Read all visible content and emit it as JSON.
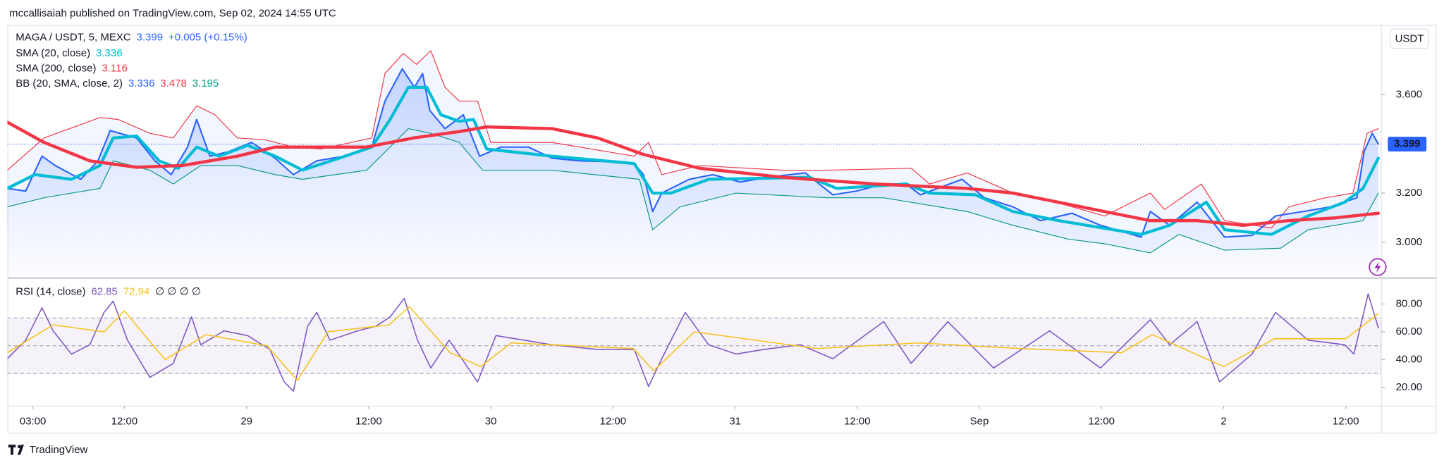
{
  "header": "mccallisaiah published on TradingView.com, Sep 02, 2024 14:55 UTC",
  "brand": "TradingView",
  "chart_data": [
    {
      "type": "line",
      "title": "MAGA / USDT, 5, MEXC",
      "title_values": [
        {
          "text": "3.399",
          "color": "#2962ff"
        },
        {
          "text": "+0.005 (+0.15%)",
          "color": "#2962ff"
        }
      ],
      "legend": [
        {
          "label": "SMA (20, close)",
          "values": [
            {
              "text": "3.336",
              "color": "#00bcd4"
            }
          ]
        },
        {
          "label": "SMA (200, close)",
          "values": [
            {
              "text": "3.116",
              "color": "#f23645"
            }
          ]
        },
        {
          "label": "BB (20, SMA, close, 2)",
          "values": [
            {
              "text": "3.336",
              "color": "#2962ff"
            },
            {
              "text": "3.478",
              "color": "#f23645"
            },
            {
              "text": "3.195",
              "color": "#089981"
            }
          ]
        }
      ],
      "axis_unit": "USDT",
      "last_price": 3.399,
      "xlim": [
        0.5,
        135.5
      ],
      "xticks": [
        {
          "value": 3,
          "label": "03:00"
        },
        {
          "value": 12,
          "label": "12:00"
        },
        {
          "value": 24,
          "label": "29"
        },
        {
          "value": 36,
          "label": "12:00"
        },
        {
          "value": 48,
          "label": "30"
        },
        {
          "value": 60,
          "label": "12:00"
        },
        {
          "value": 72,
          "label": "31"
        },
        {
          "value": 84,
          "label": "12:00"
        },
        {
          "value": 96,
          "label": "Sep"
        },
        {
          "value": 108,
          "label": "12:00"
        },
        {
          "value": 120,
          "label": "2"
        },
        {
          "value": 132,
          "label": "12:00"
        }
      ],
      "ylim": [
        2.862,
        3.88
      ],
      "yticks": [
        {
          "value": 3,
          "label": "3.000"
        },
        {
          "value": 3.2,
          "label": "3.200"
        },
        {
          "value": 3.6,
          "label": "3.600"
        }
      ],
      "series": [
        {
          "color": "#f23645",
          "width": 0.9,
          "x": [
            0.5,
            4.1,
            9.6,
            11.4,
            14.5,
            16.8,
            19.1,
            20.9,
            23.1,
            25.8,
            28.6,
            31.3,
            36.3,
            37.6,
            39.4,
            40.7,
            42.1,
            43.5,
            44.9,
            46.7,
            48.0,
            54.0,
            62.1,
            63.5,
            64.8,
            68.5,
            76.7,
            81.1,
            89.3,
            91.1,
            94.8,
            99.3,
            102.9,
            108.3,
            112.8,
            114.2,
            117.8,
            120.1,
            124.7,
            126.4,
            130.0,
            132.7,
            134.1,
            135.2
          ],
          "values": [
            3.293,
            3.424,
            3.507,
            3.499,
            3.443,
            3.424,
            3.555,
            3.518,
            3.424,
            3.417,
            3.387,
            3.379,
            3.424,
            3.686,
            3.768,
            3.723,
            3.779,
            3.63,
            3.574,
            3.574,
            3.406,
            3.406,
            3.35,
            3.406,
            3.275,
            3.312,
            3.293,
            3.293,
            3.301,
            3.237,
            3.282,
            3.2,
            3.17,
            3.107,
            3.2,
            3.133,
            3.237,
            3.088,
            3.058,
            3.144,
            3.181,
            3.2,
            3.443,
            3.462
          ]
        },
        {
          "color": "#089981",
          "width": 0.9,
          "x": [
            0.5,
            4.1,
            6.8,
            9.6,
            10.9,
            14.5,
            16.8,
            19.5,
            23.1,
            26.8,
            29.5,
            35.8,
            38.1,
            39.9,
            42.1,
            44.9,
            47.2,
            54.0,
            62.6,
            63.9,
            66.6,
            72.1,
            81.1,
            86.6,
            94.8,
            99.3,
            104.7,
            108.3,
            112.8,
            115.6,
            120.1,
            125.6,
            128.3,
            133.7,
            135.2
          ],
          "values": [
            3.144,
            3.181,
            3.2,
            3.219,
            3.331,
            3.293,
            3.237,
            3.312,
            3.312,
            3.275,
            3.256,
            3.293,
            3.387,
            3.462,
            3.443,
            3.406,
            3.293,
            3.293,
            3.256,
            3.051,
            3.144,
            3.2,
            3.181,
            3.181,
            3.125,
            3.069,
            3.013,
            2.994,
            2.957,
            3.032,
            2.968,
            2.976,
            3.051,
            3.088,
            3.2
          ]
        },
        {
          "color": "#2962ff",
          "width": 1.6,
          "x": [
            0.5,
            2.3,
            3.9,
            5.2,
            7.7,
            9.4,
            10.6,
            13.2,
            15.0,
            16.6,
            18.2,
            19.1,
            20.4,
            22.2,
            24.5,
            26.8,
            28.6,
            30.9,
            33.6,
            36.3,
            37.6,
            39.3,
            40.5,
            41.3,
            42.0,
            43.5,
            45.3,
            46.9,
            49.0,
            51.7,
            54.0,
            56.7,
            60.3,
            62.1,
            63.0,
            63.9,
            64.8,
            67.5,
            69.8,
            72.5,
            75.7,
            78.9,
            81.6,
            83.9,
            86.6,
            88.8,
            90.2,
            94.3,
            96.5,
            99.3,
            102.0,
            105.1,
            107.9,
            110.1,
            111.9,
            112.8,
            114.7,
            117.4,
            120.1,
            122.8,
            125.1,
            127.8,
            130.5,
            133.1,
            133.8,
            134.6,
            135.2
          ],
          "values": [
            3.219,
            3.208,
            3.35,
            3.312,
            3.256,
            3.331,
            3.454,
            3.424,
            3.331,
            3.275,
            3.387,
            3.499,
            3.35,
            3.368,
            3.406,
            3.342,
            3.275,
            3.331,
            3.35,
            3.387,
            3.574,
            3.705,
            3.63,
            3.686,
            3.536,
            3.462,
            3.518,
            3.35,
            3.387,
            3.387,
            3.342,
            3.331,
            3.327,
            3.32,
            3.275,
            3.125,
            3.2,
            3.256,
            3.275,
            3.245,
            3.267,
            3.282,
            3.193,
            3.208,
            3.237,
            3.237,
            3.193,
            3.256,
            3.181,
            3.144,
            3.088,
            3.118,
            3.069,
            3.043,
            3.021,
            3.125,
            3.069,
            3.163,
            3.021,
            3.028,
            3.107,
            3.125,
            3.144,
            3.181,
            3.368,
            3.443,
            3.399
          ]
        },
        {
          "color": "#00bcd4",
          "width": 3.2,
          "x": [
            0.5,
            3.2,
            6.8,
            9.6,
            10.9,
            13.2,
            15.4,
            17.3,
            19.1,
            21.3,
            24.1,
            26.8,
            29.5,
            33.1,
            36.3,
            38.1,
            39.9,
            41.7,
            43.1,
            44.9,
            46.3,
            47.6,
            54.0,
            62.1,
            63.9,
            65.7,
            69.4,
            79.3,
            82.0,
            88.8,
            91.1,
            95.6,
            99.3,
            103.8,
            111.9,
            114.7,
            118.3,
            120.1,
            124.7,
            128.3,
            131.9,
            133.7,
            135.2
          ],
          "values": [
            3.219,
            3.275,
            3.256,
            3.312,
            3.424,
            3.432,
            3.331,
            3.301,
            3.387,
            3.35,
            3.394,
            3.35,
            3.293,
            3.342,
            3.387,
            3.499,
            3.63,
            3.63,
            3.518,
            3.492,
            3.499,
            3.379,
            3.35,
            3.32,
            3.2,
            3.2,
            3.256,
            3.264,
            3.219,
            3.237,
            3.2,
            3.193,
            3.125,
            3.088,
            3.032,
            3.069,
            3.163,
            3.051,
            3.032,
            3.107,
            3.163,
            3.219,
            3.342
          ]
        },
        {
          "color": "#f23645",
          "width": 3.4,
          "x": [
            0.5,
            4.1,
            8.6,
            13.2,
            17.7,
            23.1,
            26.8,
            31.3,
            35.8,
            40.4,
            44.9,
            47.6,
            54.0,
            58.5,
            63.0,
            68.5,
            76.7,
            85.7,
            94.8,
            99.3,
            108.3,
            112.8,
            117.4,
            121.9,
            126.4,
            130.9,
            135.2
          ],
          "values": [
            3.488,
            3.406,
            3.331,
            3.305,
            3.312,
            3.35,
            3.387,
            3.387,
            3.387,
            3.424,
            3.45,
            3.469,
            3.462,
            3.424,
            3.357,
            3.301,
            3.264,
            3.237,
            3.219,
            3.2,
            3.125,
            3.088,
            3.088,
            3.069,
            3.088,
            3.099,
            3.118
          ]
        }
      ]
    },
    {
      "type": "line",
      "title": "RSI (14, close)",
      "title_values": [
        {
          "text": "62.85",
          "color": "#7e57c2"
        },
        {
          "text": "72.94",
          "color": "#f7c21a"
        },
        {
          "text": "∅ ∅ ∅ ∅",
          "color": "#131722"
        }
      ],
      "ylim": [
        7.3,
        97.3
      ],
      "yticks": [
        {
          "value": 20,
          "label": "20.00"
        },
        {
          "value": 40,
          "label": "40.00"
        },
        {
          "value": 60,
          "label": "60.00"
        },
        {
          "value": 80,
          "label": "80.00"
        }
      ],
      "levels": [
        30,
        50,
        70
      ],
      "series": [
        {
          "color": "#7e57c2",
          "width": 1.2,
          "x": [
            0.5,
            2.3,
            3.9,
            5.0,
            6.8,
            8.6,
            10.0,
            10.9,
            12.3,
            14.5,
            16.8,
            18.6,
            19.5,
            21.8,
            24.1,
            26.3,
            27.7,
            28.6,
            30.0,
            30.9,
            32.2,
            34.9,
            36.7,
            38.1,
            39.5,
            40.8,
            42.1,
            43.9,
            46.7,
            48.5,
            54.0,
            58.5,
            62.1,
            63.5,
            64.8,
            67.1,
            69.4,
            72.1,
            74.8,
            78.4,
            81.6,
            86.6,
            89.3,
            92.9,
            97.4,
            102.9,
            107.9,
            112.8,
            114.7,
            117.4,
            119.6,
            122.8,
            125.1,
            128.3,
            131.9,
            132.8,
            134.2,
            135.2
          ],
          "values": [
            40.7,
            54.0,
            77.3,
            60.7,
            44.0,
            50.7,
            74.0,
            82.0,
            54.0,
            27.3,
            37.3,
            70.7,
            50.7,
            60.7,
            57.3,
            47.3,
            24.0,
            17.3,
            64.0,
            74.0,
            54.0,
            60.7,
            64.0,
            70.7,
            84.0,
            54.0,
            34.0,
            54.0,
            24.0,
            57.3,
            50.7,
            47.3,
            47.3,
            20.7,
            40.7,
            74.0,
            50.7,
            44.0,
            47.3,
            50.7,
            40.7,
            67.3,
            37.3,
            67.3,
            34.0,
            60.7,
            34.0,
            68.7,
            50.7,
            67.3,
            24.0,
            44.0,
            74.0,
            54.0,
            50.7,
            44.0,
            87.3,
            62.85
          ]
        },
        {
          "color": "#f7c21a",
          "width": 1.2,
          "x": [
            0.5,
            5,
            10,
            12,
            16,
            20,
            26,
            29,
            32,
            38,
            40,
            44,
            47,
            50,
            62,
            64,
            68,
            80,
            90,
            100,
            110,
            113,
            120,
            125,
            132,
            135.2
          ],
          "values": [
            45,
            65,
            60,
            75,
            40,
            58,
            50,
            25,
            60,
            65,
            78,
            45,
            35,
            52,
            48,
            32,
            60,
            48,
            52,
            48,
            45,
            58,
            35,
            55,
            55,
            72.94
          ]
        }
      ]
    }
  ]
}
